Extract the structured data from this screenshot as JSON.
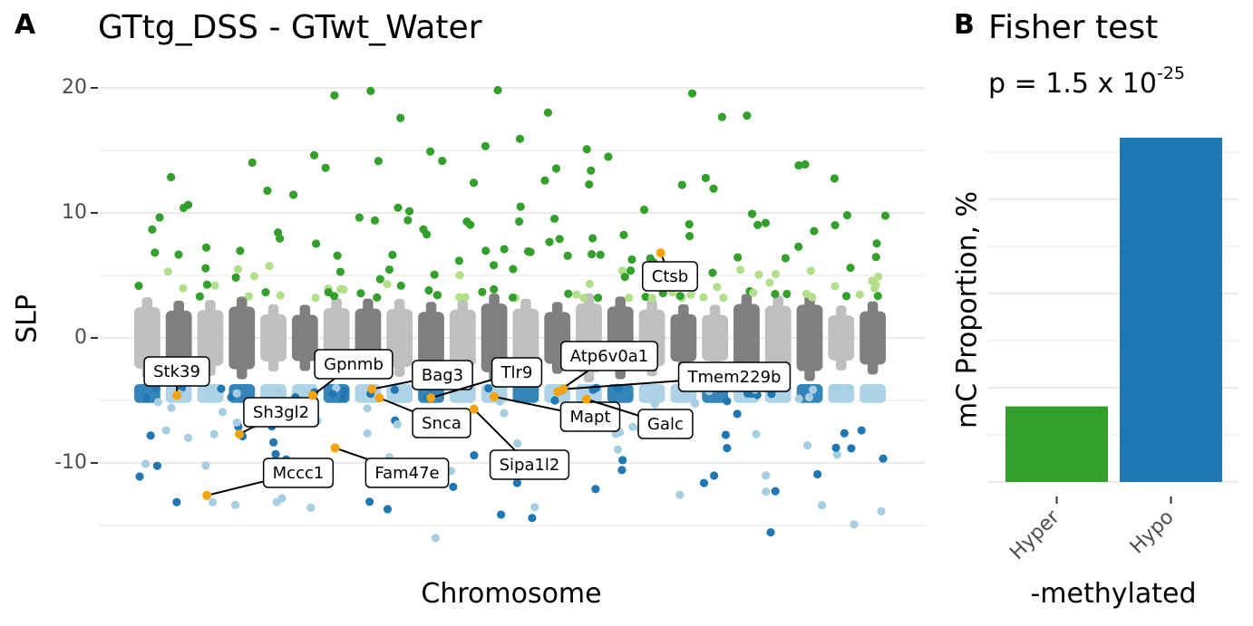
{
  "panel_a": {
    "tag": "A",
    "title": "GTtg_DSS - GTwt_Water",
    "xlabel": "Chromosome",
    "ylabel": "SLP",
    "y_ticks": [
      "20",
      "10",
      "0",
      "-10"
    ]
  },
  "panel_b": {
    "tag": "B",
    "title": "Fisher test",
    "p_prefix": "p = 1.5 x 10",
    "p_exponent": "-25",
    "xlabel": "-methylated",
    "ylabel": "mC Proportion, %"
  },
  "colors": {
    "hyper_strong": "#33a02c",
    "hyper_weak": "#b2df8a",
    "hypo_strong": "#1f78b4",
    "hypo_weak": "#a6cee3",
    "chrom_dark": "#7f7f7f",
    "chrom_light": "#bfbfbf",
    "highlight": "#f5a20b",
    "grid": "#ebebeb"
  },
  "chart_data": [
    {
      "type": "scatter",
      "subtype": "manhattan",
      "title": "GTtg_DSS - GTwt_Water",
      "xlabel": "Chromosome",
      "ylabel": "SLP",
      "ylim": [
        -17.5,
        21
      ],
      "y_ticks": [
        20,
        10,
        0,
        -10
      ],
      "grid": true,
      "chromosome_count": 24,
      "labeled_genes": [
        {
          "label": "Stk39",
          "chrom": 2,
          "slp": -4.6
        },
        {
          "label": "Sh3gl2",
          "chrom": 4,
          "slp": -7.7
        },
        {
          "label": "Mccc1",
          "chrom": 3,
          "slp": -12.6
        },
        {
          "label": "Gpnmb",
          "chrom": 6,
          "slp": -4.6
        },
        {
          "label": "Fam47e",
          "chrom": 7,
          "slp": -8.8
        },
        {
          "label": "Bag3",
          "chrom": 8,
          "slp": -4.1
        },
        {
          "label": "Snca",
          "chrom": 8,
          "slp": -4.8
        },
        {
          "label": "Tlr9",
          "chrom": 10,
          "slp": -4.8
        },
        {
          "label": "Sipa1l2",
          "chrom": 11,
          "slp": -5.7
        },
        {
          "label": "Mapt",
          "chrom": 12,
          "slp": -4.7
        },
        {
          "label": "Atp6v0a1",
          "chrom": 14,
          "slp": -4.3
        },
        {
          "label": "Tmem229b",
          "chrom": 14,
          "slp": -4.1
        },
        {
          "label": "Galc",
          "chrom": 15,
          "slp": -4.9
        },
        {
          "label": "Ctsb",
          "chrom": 17,
          "slp": 6.8
        }
      ]
    },
    {
      "type": "bar",
      "title": "Fisher test",
      "subtitle": "p = 1.5 x 10^-25",
      "xlabel": "-methylated",
      "ylabel": "mC Proportion, %",
      "categories": [
        "Hyper",
        "Hypo"
      ],
      "values": [
        18,
        82
      ],
      "ylim": [
        0,
        82
      ],
      "colors": [
        "#33a02c",
        "#1f78b4"
      ]
    }
  ]
}
